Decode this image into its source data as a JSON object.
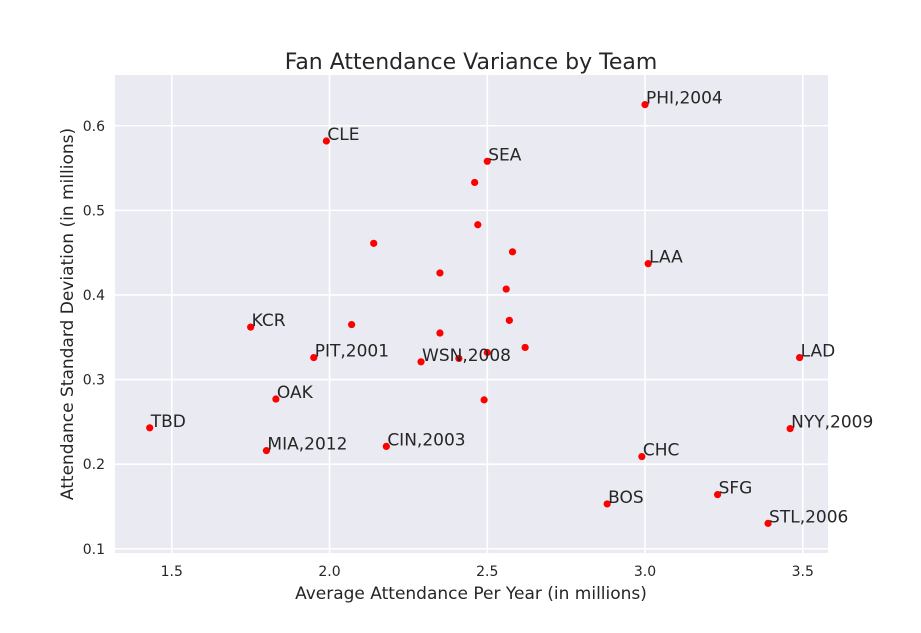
{
  "chart_data": {
    "type": "scatter",
    "title": "Fan Attendance Variance by Team",
    "xlabel": "Average Attendance Per Year (in millions)",
    "ylabel": "Attendance Standard Deviation (in millions)",
    "xlim": [
      1.32,
      3.58
    ],
    "ylim": [
      0.095,
      0.66
    ],
    "xticks": [
      1.5,
      2.0,
      2.5,
      3.0,
      3.5
    ],
    "xtick_labels": [
      "1.5",
      "2.0",
      "2.5",
      "3.0",
      "3.5"
    ],
    "yticks": [
      0.1,
      0.2,
      0.3,
      0.4,
      0.5,
      0.6
    ],
    "ytick_labels": [
      "0.1",
      "0.2",
      "0.3",
      "0.4",
      "0.5",
      "0.6"
    ],
    "grid": true,
    "background": "#eaeaf2",
    "point_color": "#ff0000",
    "points": [
      {
        "x": 3.0,
        "y": 0.625,
        "label": "PHI,2004"
      },
      {
        "x": 1.99,
        "y": 0.582,
        "label": "CLE"
      },
      {
        "x": 2.5,
        "y": 0.558,
        "label": "SEA"
      },
      {
        "x": 2.46,
        "y": 0.533,
        "label": ""
      },
      {
        "x": 2.47,
        "y": 0.483,
        "label": ""
      },
      {
        "x": 2.14,
        "y": 0.461,
        "label": ""
      },
      {
        "x": 2.58,
        "y": 0.451,
        "label": ""
      },
      {
        "x": 3.01,
        "y": 0.437,
        "label": "LAA"
      },
      {
        "x": 2.35,
        "y": 0.426,
        "label": ""
      },
      {
        "x": 2.56,
        "y": 0.407,
        "label": ""
      },
      {
        "x": 1.75,
        "y": 0.362,
        "label": "KCR"
      },
      {
        "x": 2.07,
        "y": 0.365,
        "label": ""
      },
      {
        "x": 2.57,
        "y": 0.37,
        "label": ""
      },
      {
        "x": 2.35,
        "y": 0.355,
        "label": ""
      },
      {
        "x": 2.62,
        "y": 0.338,
        "label": ""
      },
      {
        "x": 2.5,
        "y": 0.332,
        "label": ""
      },
      {
        "x": 1.95,
        "y": 0.326,
        "label": "PIT,2001"
      },
      {
        "x": 3.49,
        "y": 0.326,
        "label": "LAD"
      },
      {
        "x": 2.29,
        "y": 0.321,
        "label": "WSN,2008"
      },
      {
        "x": 2.41,
        "y": 0.325,
        "label": ""
      },
      {
        "x": 1.83,
        "y": 0.277,
        "label": "OAK"
      },
      {
        "x": 2.49,
        "y": 0.276,
        "label": ""
      },
      {
        "x": 1.43,
        "y": 0.243,
        "label": "TBD"
      },
      {
        "x": 3.46,
        "y": 0.242,
        "label": "NYY,2009"
      },
      {
        "x": 2.18,
        "y": 0.221,
        "label": "CIN,2003"
      },
      {
        "x": 1.8,
        "y": 0.216,
        "label": "MIA,2012"
      },
      {
        "x": 2.99,
        "y": 0.209,
        "label": "CHC"
      },
      {
        "x": 3.23,
        "y": 0.164,
        "label": "SFG"
      },
      {
        "x": 2.88,
        "y": 0.153,
        "label": "BOS"
      },
      {
        "x": 3.39,
        "y": 0.13,
        "label": "STL,2006"
      }
    ]
  }
}
